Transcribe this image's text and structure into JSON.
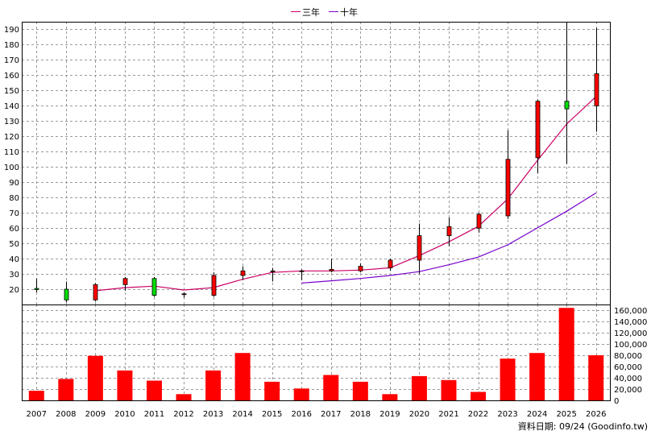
{
  "chart_data": {
    "type": "candlestick+bar",
    "legend": [
      {
        "name": "三年",
        "color": "#cc0066"
      },
      {
        "name": "十年",
        "color": "#7700cc"
      }
    ],
    "years": [
      "2007",
      "2008",
      "2009",
      "2010",
      "2011",
      "2012",
      "2013",
      "2014",
      "2015",
      "2016",
      "2017",
      "2018",
      "2019",
      "2020",
      "2021",
      "2022",
      "2023",
      "2024",
      "2025",
      "2026"
    ],
    "price_axis": {
      "min": 10,
      "max": 195,
      "ticks": [
        20,
        30,
        40,
        50,
        60,
        70,
        80,
        90,
        100,
        110,
        120,
        130,
        140,
        150,
        160,
        170,
        180,
        190
      ]
    },
    "volume_axis": {
      "min": 0,
      "max": 170000,
      "ticks": [
        0,
        20000,
        40000,
        60000,
        80000,
        100000,
        120000,
        140000,
        160000
      ],
      "tick_labels": [
        "0",
        "20,000",
        "40,000",
        "60,000",
        "80,000",
        "100,000",
        "120,000",
        "140,000",
        "160,000"
      ]
    },
    "candles": [
      {
        "open": 20.5,
        "close": 19.8,
        "high": 27,
        "low": 18
      },
      {
        "open": 20,
        "close": 13,
        "high": 25,
        "low": 11.5
      },
      {
        "open": 13,
        "close": 23,
        "high": 24,
        "low": 12
      },
      {
        "open": 23,
        "close": 27,
        "high": 28,
        "low": 19
      },
      {
        "open": 27,
        "close": 16,
        "high": 28,
        "low": 15
      },
      {
        "open": 16.5,
        "close": 17,
        "high": 18,
        "low": 14.5
      },
      {
        "open": 16,
        "close": 29,
        "high": 31,
        "low": 15
      },
      {
        "open": 29,
        "close": 32,
        "high": 35,
        "low": 26
      },
      {
        "open": 31.5,
        "close": 32,
        "high": 34,
        "low": 25
      },
      {
        "open": 31.5,
        "close": 32,
        "high": 33,
        "low": 26
      },
      {
        "open": 32,
        "close": 33,
        "high": 40,
        "low": 31
      },
      {
        "open": 32,
        "close": 35,
        "high": 37,
        "low": 31
      },
      {
        "open": 34,
        "close": 39,
        "high": 40,
        "low": 32
      },
      {
        "open": 39,
        "close": 55,
        "high": 63,
        "low": 30
      },
      {
        "open": 55,
        "close": 61,
        "high": 67,
        "low": 48
      },
      {
        "open": 60,
        "close": 69,
        "high": 70,
        "low": 57
      },
      {
        "open": 68,
        "close": 105,
        "high": 124,
        "low": 66
      },
      {
        "open": 106,
        "close": 143,
        "high": 144,
        "low": 96
      },
      {
        "open": 143,
        "close": 138,
        "high": 195,
        "low": 102
      },
      {
        "open": 140,
        "close": 161,
        "high": 191,
        "low": 123
      }
    ],
    "ma3": [
      null,
      null,
      19,
      21,
      22,
      19.5,
      21,
      26.5,
      31,
      32,
      32,
      32.5,
      34,
      42,
      51,
      61,
      79,
      104,
      128,
      146
    ],
    "ma10": [
      null,
      null,
      null,
      null,
      null,
      null,
      null,
      null,
      null,
      24,
      25.5,
      27,
      29,
      31.5,
      36,
      41,
      49,
      60,
      71,
      83
    ],
    "volumes": [
      17000,
      38000,
      79000,
      53000,
      35000,
      11000,
      53000,
      84000,
      33000,
      21000,
      45000,
      33000,
      11000,
      43000,
      36000,
      15000,
      74000,
      84000,
      164000,
      80000
    ]
  },
  "footer": "資料日期: 09/24 (Goodinfo.tw)"
}
